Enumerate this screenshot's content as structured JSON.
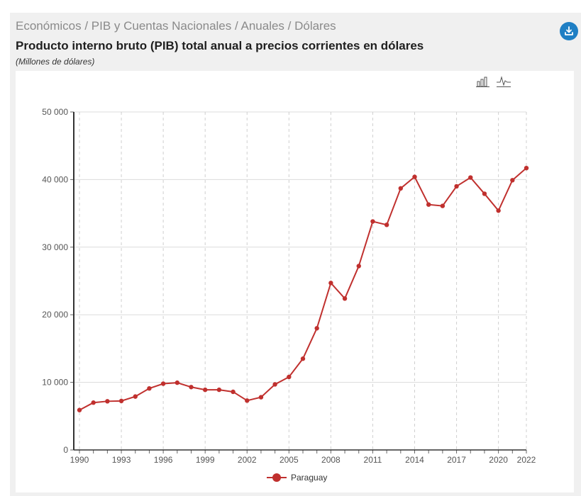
{
  "header": {
    "breadcrumb": "Económicos / PIB y Cuentas Nacionales / Anuales / Dólares",
    "download_icon": "download-icon"
  },
  "toolbar": {
    "bar_icon": "bar-chart-icon",
    "line_icon": "line-chart-icon"
  },
  "colors": {
    "series": "#c0302e",
    "accent": "#1f7fc4"
  },
  "chart_data": {
    "type": "line",
    "title": "Producto interno bruto (PIB) total anual a precios corrientes en dólares",
    "subtitle": "(Millones de dólares)",
    "xlabel": "",
    "ylabel": "",
    "x": [
      1990,
      1991,
      1992,
      1993,
      1994,
      1995,
      1996,
      1997,
      1998,
      1999,
      2000,
      2001,
      2002,
      2003,
      2004,
      2005,
      2006,
      2007,
      2008,
      2009,
      2010,
      2011,
      2012,
      2013,
      2014,
      2015,
      2016,
      2017,
      2018,
      2019,
      2020,
      2021,
      2022
    ],
    "x_tick_labels": [
      "1990",
      "1993",
      "1996",
      "1999",
      "2002",
      "2005",
      "2008",
      "2011",
      "2014",
      "2017",
      "2020",
      "2022"
    ],
    "y_ticks": [
      0,
      10000,
      20000,
      30000,
      40000,
      50000
    ],
    "y_tick_labels": [
      "0",
      "10 000",
      "20 000",
      "30 000",
      "40 000",
      "50 000"
    ],
    "ylim": [
      0,
      50000
    ],
    "grid": true,
    "legend_position": "bottom-center",
    "series": [
      {
        "name": "Paraguay",
        "values": [
          5900,
          7000,
          7200,
          7250,
          7900,
          9100,
          9800,
          9950,
          9300,
          8900,
          8900,
          8600,
          7300,
          7800,
          9700,
          10800,
          13500,
          18000,
          24700,
          22400,
          27200,
          33800,
          33300,
          38700,
          40400,
          36300,
          36100,
          39000,
          40300,
          37900,
          35400,
          39900,
          41700
        ]
      }
    ]
  }
}
